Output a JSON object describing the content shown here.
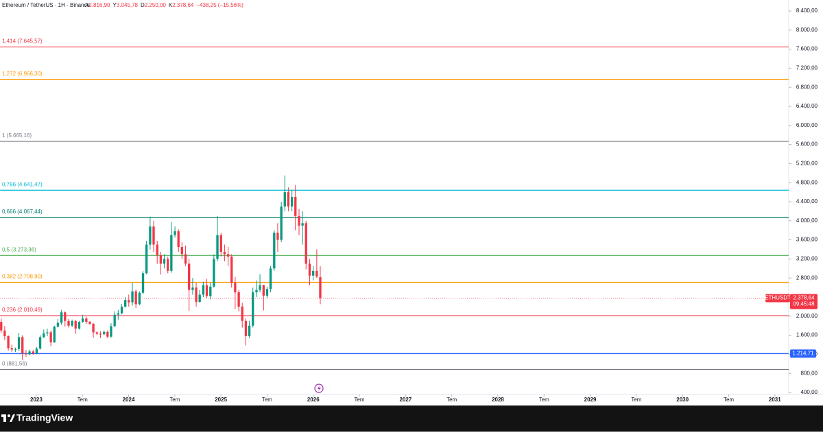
{
  "header": {
    "symbol": "Ethereum / TetherUS · 1H · Binance",
    "ohlc": [
      {
        "prefix": "A",
        "value": "2.816,90"
      },
      {
        "prefix": "Y",
        "value": "3.045,78"
      },
      {
        "prefix": "D",
        "value": "2.250,00"
      },
      {
        "prefix": "K",
        "value": "2.378,64"
      }
    ],
    "change": "−438,25 (−15,56%)"
  },
  "brand": "TradingView",
  "chart_data": {
    "type": "candlestick",
    "up_color": "#089981",
    "down_color": "#f23645",
    "x": [
      2022.62,
      2022.658,
      2022.697,
      2022.735,
      2022.774,
      2022.812,
      2022.85,
      2022.889,
      2022.927,
      2022.966,
      2023.004,
      2023.042,
      2023.081,
      2023.119,
      2023.158,
      2023.196,
      2023.234,
      2023.273,
      2023.311,
      2023.35,
      2023.388,
      2023.426,
      2023.465,
      2023.503,
      2023.542,
      2023.58,
      2023.618,
      2023.657,
      2023.695,
      2023.734,
      2023.772,
      2023.81,
      2023.849,
      2023.887,
      2023.926,
      2023.964,
      2024.002,
      2024.041,
      2024.079,
      2024.118,
      2024.156,
      2024.194,
      2024.233,
      2024.271,
      2024.31,
      2024.348,
      2024.386,
      2024.425,
      2024.463,
      2024.502,
      2024.54,
      2024.578,
      2024.617,
      2024.655,
      2024.694,
      2024.732,
      2024.77,
      2024.809,
      2024.847,
      2024.886,
      2024.924,
      2024.962,
      2025.001,
      2025.039,
      2025.078,
      2025.116,
      2025.154,
      2025.193,
      2025.231,
      2025.27,
      2025.308,
      2025.346,
      2025.385,
      2025.423,
      2025.462,
      2025.5,
      2025.538,
      2025.577,
      2025.615,
      2025.654,
      2025.692,
      2025.73,
      2025.769,
      2025.807,
      2025.846,
      2025.884,
      2025.922,
      2025.961,
      2025.999,
      2026.038,
      2026.076
    ],
    "open": [
      1880,
      1700,
      1580,
      1330,
      1300,
      1310,
      1560,
      1220,
      1200,
      1260,
      1220,
      1320,
      1560,
      1640,
      1660,
      1450,
      1780,
      1860,
      2080,
      1900,
      1800,
      1900,
      1740,
      1880,
      1950,
      1880,
      1840,
      1660,
      1630,
      1620,
      1670,
      1570,
      1790,
      2030,
      2060,
      2200,
      2340,
      2290,
      2520,
      2250,
      2490,
      2900,
      3500,
      3880,
      3500,
      3280,
      3100,
      3200,
      2950,
      3700,
      3780,
      3450,
      3300,
      3100,
      2550,
      2600,
      2300,
      2450,
      2650,
      2420,
      2620,
      3200,
      3700,
      3350,
      3300,
      3250,
      2700,
      2500,
      2200,
      1900,
      1580,
      1800,
      2500,
      2550,
      2650,
      2430,
      2570,
      3000,
      3750,
      3600,
      4300,
      4600,
      4300,
      4500,
      4100,
      3900,
      3950,
      3100,
      2850,
      2950,
      2816.9
    ],
    "high": [
      1950,
      1790,
      1600,
      1400,
      1340,
      1650,
      1600,
      1290,
      1300,
      1290,
      1350,
      1600,
      1720,
      1740,
      1700,
      1800,
      1940,
      2130,
      2100,
      1940,
      1930,
      1920,
      1900,
      2030,
      1990,
      1900,
      1860,
      1680,
      1680,
      1700,
      1700,
      1850,
      2100,
      2130,
      2250,
      2400,
      2450,
      2700,
      2560,
      2520,
      2950,
      3580,
      4090,
      4000,
      3580,
      3350,
      3300,
      3250,
      3980,
      3880,
      3820,
      3550,
      3480,
      3200,
      2800,
      2700,
      2550,
      2720,
      2780,
      2700,
      3300,
      4100,
      3750,
      3500,
      3450,
      3300,
      2820,
      2550,
      2280,
      1950,
      1900,
      2600,
      2750,
      2880,
      2660,
      2620,
      3050,
      3800,
      3950,
      4400,
      4950,
      4700,
      4650,
      4750,
      4250,
      4200,
      4000,
      3200,
      3050,
      3400,
      3045.78
    ],
    "low": [
      1650,
      1500,
      1280,
      1250,
      1250,
      1270,
      1080,
      1150,
      1180,
      1190,
      1200,
      1300,
      1540,
      1580,
      1370,
      1440,
      1760,
      1820,
      1780,
      1760,
      1770,
      1630,
      1720,
      1860,
      1840,
      1820,
      1550,
      1600,
      1540,
      1600,
      1540,
      1550,
      1780,
      1930,
      2040,
      2180,
      2200,
      2220,
      2170,
      2230,
      2470,
      2880,
      3400,
      3350,
      3100,
      2870,
      3000,
      2900,
      2910,
      3650,
      3350,
      3200,
      3050,
      2110,
      2450,
      2200,
      2280,
      2400,
      2380,
      2350,
      2600,
      3150,
      3250,
      3150,
      3050,
      2600,
      2150,
      2100,
      1760,
      1385,
      1540,
      1760,
      2400,
      2500,
      2120,
      2380,
      2500,
      2950,
      3350,
      3550,
      4200,
      4200,
      4200,
      3800,
      3700,
      3500,
      2980,
      2650,
      2750,
      2800,
      2250
    ],
    "close": [
      1700,
      1580,
      1330,
      1300,
      1310,
      1560,
      1220,
      1200,
      1260,
      1220,
      1320,
      1560,
      1640,
      1660,
      1450,
      1780,
      1860,
      2080,
      1900,
      1800,
      1900,
      1740,
      1880,
      1950,
      1880,
      1840,
      1660,
      1630,
      1620,
      1670,
      1570,
      1790,
      2030,
      2060,
      2200,
      2340,
      2290,
      2520,
      2250,
      2490,
      2900,
      3500,
      3880,
      3500,
      3280,
      3100,
      3200,
      2950,
      3700,
      3780,
      3450,
      3300,
      3100,
      2550,
      2600,
      2300,
      2450,
      2650,
      2420,
      2620,
      3200,
      3700,
      3350,
      3300,
      3250,
      2700,
      2500,
      2200,
      1900,
      1580,
      1800,
      2500,
      2550,
      2650,
      2430,
      2570,
      3000,
      3750,
      3600,
      4300,
      4600,
      4300,
      4500,
      4100,
      3900,
      3950,
      3100,
      2850,
      2950,
      2830,
      2378.64
    ],
    "xlim": [
      2022.607,
      2031.15
    ],
    "xticks": [
      {
        "value": 2023,
        "label": "2023"
      },
      {
        "value": 2023.5,
        "label": "Tem"
      },
      {
        "value": 2024,
        "label": "2024"
      },
      {
        "value": 2024.5,
        "label": "Tem"
      },
      {
        "value": 2025,
        "label": "2025"
      },
      {
        "value": 2025.5,
        "label": "Tem"
      },
      {
        "value": 2026,
        "label": "2026"
      },
      {
        "value": 2026.5,
        "label": "Tem"
      },
      {
        "value": 2027,
        "label": "2027"
      },
      {
        "value": 2027.5,
        "label": "Tem"
      },
      {
        "value": 2028,
        "label": "2028"
      },
      {
        "value": 2028.5,
        "label": "Tem"
      },
      {
        "value": 2029,
        "label": "2029"
      },
      {
        "value": 2029.5,
        "label": "Tem"
      },
      {
        "value": 2030,
        "label": "2030"
      },
      {
        "value": 2030.5,
        "label": "Tem"
      },
      {
        "value": 2031,
        "label": "2031"
      }
    ],
    "ylim": [
      400,
      8400
    ],
    "yticks": [
      {
        "value": 400,
        "label": "400,00"
      },
      {
        "value": 800,
        "label": "800,00"
      },
      {
        "value": 1200,
        "label": "1.200,00"
      },
      {
        "value": 1600,
        "label": "1.600,00"
      },
      {
        "value": 2000,
        "label": "2.000,00"
      },
      {
        "value": 2400,
        "label": "2.400,00"
      },
      {
        "value": 2800,
        "label": "2.800,00"
      },
      {
        "value": 3200,
        "label": "3.200,00"
      },
      {
        "value": 3600,
        "label": "3.600,00"
      },
      {
        "value": 4000,
        "label": "4.000,00"
      },
      {
        "value": 4400,
        "label": "4.400,00"
      },
      {
        "value": 4800,
        "label": "4.800,00"
      },
      {
        "value": 5200,
        "label": "5.200,00"
      },
      {
        "value": 5600,
        "label": "5.600,00"
      },
      {
        "value": 6000,
        "label": "6.000,00"
      },
      {
        "value": 6400,
        "label": "6.400,00"
      },
      {
        "value": 6800,
        "label": "6.800,00"
      },
      {
        "value": 7200,
        "label": "7.200,00"
      },
      {
        "value": 7600,
        "label": "7.600,00"
      },
      {
        "value": 8000,
        "label": "8.000,00"
      },
      {
        "value": 8400,
        "label": "8.400,00"
      }
    ],
    "fib_levels": [
      {
        "value": 7645.57,
        "label": "1,414 (7.645,57)",
        "color": "#f23645"
      },
      {
        "value": 6966.3,
        "label": "1,272 (6.966,30)",
        "color": "#ff9800"
      },
      {
        "value": 5665.16,
        "label": "1 (5.665,16)",
        "color": "#787b86"
      },
      {
        "value": 4641.47,
        "label": "0,786 (4.641,47)",
        "color": "#00bcd4"
      },
      {
        "value": 4067.44,
        "label": "0,666 (4.067,44)",
        "color": "#00796b"
      },
      {
        "value": 3273.36,
        "label": "0,5 (3.273,36)",
        "color": "#4caf50"
      },
      {
        "value": 2708.9,
        "label": "0,382 (2.708,90)",
        "color": "#ff9800"
      },
      {
        "value": 2010.49,
        "label": "0,236 (2.010,49)",
        "color": "#f23645"
      },
      {
        "value": 881.56,
        "label": "0 (881,56)",
        "color": "#787b86"
      }
    ],
    "horizontal_line": {
      "value": 1214.71,
      "label": "1.214,71",
      "color": "#2962ff"
    },
    "last_price": {
      "symbol": "ETHUSDT",
      "label": "2.378,64",
      "countdown": "09:45:48",
      "color": "#f23645"
    }
  }
}
